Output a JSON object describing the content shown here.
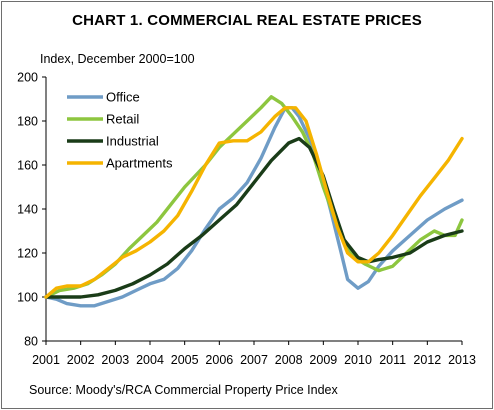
{
  "chart_data": {
    "type": "line",
    "title": "CHART 1. COMMERCIAL REAL ESTATE PRICES",
    "ylabel": "Index, December 2000=100",
    "xlabel": "",
    "source": "Source: Moody's/RCA Commercial Property Price Index",
    "ylim": [
      80,
      200
    ],
    "yticks": [
      80,
      100,
      120,
      140,
      160,
      180,
      200
    ],
    "xlim": [
      2001,
      2013
    ],
    "xticks": [
      "2001",
      "2002",
      "2003",
      "2004",
      "2005",
      "2006",
      "2007",
      "2008",
      "2009",
      "2010",
      "2011",
      "2012",
      "2013"
    ],
    "grid": false,
    "legend": "top-left",
    "series": [
      {
        "name": "Office",
        "color": "#6f9cc6",
        "points": [
          [
            2001.0,
            100
          ],
          [
            2001.3,
            99
          ],
          [
            2001.6,
            97
          ],
          [
            2002.0,
            96
          ],
          [
            2002.4,
            96
          ],
          [
            2002.8,
            98
          ],
          [
            2003.2,
            100
          ],
          [
            2003.6,
            103
          ],
          [
            2004.0,
            106
          ],
          [
            2004.4,
            108
          ],
          [
            2004.8,
            113
          ],
          [
            2005.2,
            121
          ],
          [
            2005.6,
            131
          ],
          [
            2006.0,
            140
          ],
          [
            2006.4,
            145
          ],
          [
            2006.8,
            152
          ],
          [
            2007.2,
            163
          ],
          [
            2007.6,
            177
          ],
          [
            2007.9,
            186
          ],
          [
            2008.1,
            186
          ],
          [
            2008.3,
            182
          ],
          [
            2008.6,
            172
          ],
          [
            2008.9,
            158
          ],
          [
            2009.2,
            140
          ],
          [
            2009.5,
            121
          ],
          [
            2009.7,
            108
          ],
          [
            2010.0,
            104
          ],
          [
            2010.3,
            107
          ],
          [
            2010.6,
            114
          ],
          [
            2011.0,
            121
          ],
          [
            2011.5,
            128
          ],
          [
            2012.0,
            135
          ],
          [
            2012.5,
            140
          ],
          [
            2013.0,
            144
          ]
        ]
      },
      {
        "name": "Retail",
        "color": "#8dc63f",
        "points": [
          [
            2001.0,
            100
          ],
          [
            2001.4,
            103
          ],
          [
            2001.8,
            104
          ],
          [
            2002.2,
            106
          ],
          [
            2002.6,
            110
          ],
          [
            2003.0,
            115
          ],
          [
            2003.4,
            122
          ],
          [
            2003.8,
            128
          ],
          [
            2004.2,
            134
          ],
          [
            2004.6,
            142
          ],
          [
            2005.0,
            150
          ],
          [
            2005.3,
            155
          ],
          [
            2005.6,
            160
          ],
          [
            2006.0,
            168
          ],
          [
            2006.4,
            174
          ],
          [
            2006.8,
            180
          ],
          [
            2007.2,
            186
          ],
          [
            2007.5,
            191
          ],
          [
            2007.8,
            188
          ],
          [
            2008.1,
            182
          ],
          [
            2008.4,
            175
          ],
          [
            2008.7,
            165
          ],
          [
            2009.0,
            150
          ],
          [
            2009.3,
            137
          ],
          [
            2009.6,
            125
          ],
          [
            2009.9,
            118
          ],
          [
            2010.2,
            115
          ],
          [
            2010.6,
            112
          ],
          [
            2011.0,
            114
          ],
          [
            2011.4,
            120
          ],
          [
            2011.8,
            126
          ],
          [
            2012.2,
            130
          ],
          [
            2012.5,
            128
          ],
          [
            2012.8,
            128
          ],
          [
            2013.0,
            135
          ]
        ]
      },
      {
        "name": "Industrial",
        "color": "#1a3c18",
        "points": [
          [
            2001.0,
            100
          ],
          [
            2001.5,
            100
          ],
          [
            2002.0,
            100
          ],
          [
            2002.5,
            101
          ],
          [
            2003.0,
            103
          ],
          [
            2003.5,
            106
          ],
          [
            2004.0,
            110
          ],
          [
            2004.5,
            115
          ],
          [
            2005.0,
            122
          ],
          [
            2005.5,
            128
          ],
          [
            2006.0,
            135
          ],
          [
            2006.5,
            142
          ],
          [
            2007.0,
            152
          ],
          [
            2007.5,
            162
          ],
          [
            2008.0,
            170
          ],
          [
            2008.3,
            172
          ],
          [
            2008.6,
            168
          ],
          [
            2009.0,
            155
          ],
          [
            2009.3,
            140
          ],
          [
            2009.6,
            126
          ],
          [
            2010.0,
            118
          ],
          [
            2010.3,
            116
          ],
          [
            2010.6,
            117
          ],
          [
            2011.0,
            118
          ],
          [
            2011.5,
            120
          ],
          [
            2012.0,
            125
          ],
          [
            2012.5,
            128
          ],
          [
            2013.0,
            130
          ]
        ]
      },
      {
        "name": "Apartments",
        "color": "#f5b400",
        "points": [
          [
            2001.0,
            100
          ],
          [
            2001.3,
            104
          ],
          [
            2001.6,
            105
          ],
          [
            2002.0,
            105
          ],
          [
            2002.4,
            108
          ],
          [
            2002.8,
            113
          ],
          [
            2003.2,
            118
          ],
          [
            2003.6,
            121
          ],
          [
            2004.0,
            125
          ],
          [
            2004.4,
            130
          ],
          [
            2004.8,
            137
          ],
          [
            2005.2,
            148
          ],
          [
            2005.6,
            160
          ],
          [
            2006.0,
            170
          ],
          [
            2006.4,
            171
          ],
          [
            2006.8,
            171
          ],
          [
            2007.2,
            175
          ],
          [
            2007.6,
            182
          ],
          [
            2007.9,
            186
          ],
          [
            2008.2,
            186
          ],
          [
            2008.5,
            180
          ],
          [
            2008.8,
            165
          ],
          [
            2009.1,
            148
          ],
          [
            2009.4,
            132
          ],
          [
            2009.7,
            120
          ],
          [
            2010.0,
            116
          ],
          [
            2010.3,
            116
          ],
          [
            2010.6,
            120
          ],
          [
            2011.0,
            128
          ],
          [
            2011.4,
            137
          ],
          [
            2011.8,
            146
          ],
          [
            2012.2,
            154
          ],
          [
            2012.6,
            162
          ],
          [
            2013.0,
            172
          ]
        ]
      }
    ]
  }
}
